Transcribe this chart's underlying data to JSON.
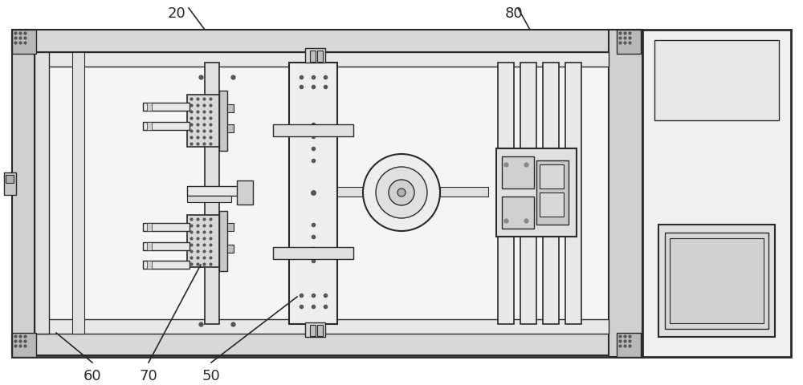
{
  "bg_color": "#ffffff",
  "line_color": "#2a2a2a",
  "fig_width": 10.0,
  "fig_height": 4.8,
  "dpi": 100
}
